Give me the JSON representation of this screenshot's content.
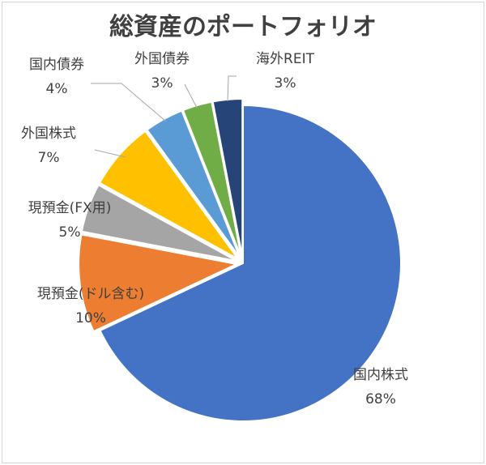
{
  "chart_data": {
    "type": "pie",
    "title": "総資産のポートフォリオ",
    "start_angle_deg": 0,
    "direction": "clockwise",
    "slices": [
      {
        "label": "国内株式",
        "value_label": "68%",
        "value": 68,
        "color": "#4472C4",
        "exploded": false
      },
      {
        "label": "現預金(ドル含む)",
        "value_label": "10%",
        "value": 10,
        "color": "#ED7D31",
        "exploded": true
      },
      {
        "label": "現預金(FX用)",
        "value_label": "5%",
        "value": 5,
        "color": "#A5A5A5",
        "exploded": true
      },
      {
        "label": "外国株式",
        "value_label": "7%",
        "value": 7,
        "color": "#FFC000",
        "exploded": true
      },
      {
        "label": "国内債券",
        "value_label": "4%",
        "value": 4,
        "color": "#5B9BD5",
        "exploded": true
      },
      {
        "label": "外国債券",
        "value_label": "3%",
        "value": 3,
        "color": "#70AD47",
        "exploded": true
      },
      {
        "label": "海外REIT",
        "value_label": "3%",
        "value": 3,
        "color": "#264478",
        "exploded": true
      }
    ]
  }
}
